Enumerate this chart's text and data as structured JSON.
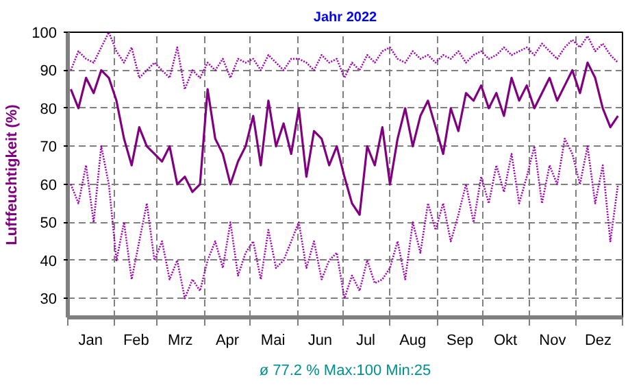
{
  "chart_data": {
    "type": "line",
    "title": "Jahr 2022",
    "ylabel": "Luftfeuchtigkeit (%)",
    "annotations": [
      "ø 77.2 % Max:100 Min:25"
    ],
    "x": [
      "2022-01-03",
      "2022-01-08",
      "2022-01-13",
      "2022-01-18",
      "2022-01-23",
      "2022-01-28",
      "2022-02-02",
      "2022-02-07",
      "2022-02-12",
      "2022-02-17",
      "2022-02-22",
      "2022-02-27",
      "2022-03-04",
      "2022-03-09",
      "2022-03-14",
      "2022-03-19",
      "2022-03-24",
      "2022-03-29",
      "2022-04-03",
      "2022-04-08",
      "2022-04-13",
      "2022-04-18",
      "2022-04-23",
      "2022-04-28",
      "2022-05-03",
      "2022-05-08",
      "2022-05-13",
      "2022-05-18",
      "2022-05-23",
      "2022-05-28",
      "2022-06-02",
      "2022-06-07",
      "2022-06-12",
      "2022-06-17",
      "2022-06-22",
      "2022-06-27",
      "2022-07-02",
      "2022-07-07",
      "2022-07-12",
      "2022-07-17",
      "2022-07-22",
      "2022-07-27",
      "2022-08-01",
      "2022-08-06",
      "2022-08-11",
      "2022-08-16",
      "2022-08-21",
      "2022-08-26",
      "2022-08-31",
      "2022-09-05",
      "2022-09-10",
      "2022-09-15",
      "2022-09-20",
      "2022-09-25",
      "2022-09-30",
      "2022-10-05",
      "2022-10-10",
      "2022-10-15",
      "2022-10-20",
      "2022-10-25",
      "2022-10-30",
      "2022-11-04",
      "2022-11-09",
      "2022-11-14",
      "2022-11-19",
      "2022-11-24",
      "2022-11-29",
      "2022-12-04",
      "2022-12-09",
      "2022-12-14",
      "2022-12-19",
      "2022-12-24",
      "2022-12-29"
    ],
    "series": [
      {
        "color": "#a000b0",
        "line_style": "dotted",
        "values": [
          90,
          95,
          93,
          92,
          96,
          100,
          95,
          92,
          96,
          88,
          90,
          92,
          90,
          88,
          96,
          85,
          90,
          88,
          92,
          90,
          93,
          88,
          93,
          92,
          93,
          90,
          94,
          92,
          90,
          93,
          93,
          92,
          90,
          94,
          92,
          93,
          88,
          92,
          90,
          94,
          92,
          95,
          96,
          93,
          92,
          95,
          93,
          94,
          92,
          94,
          93,
          95,
          92,
          94,
          95,
          93,
          94,
          96,
          94,
          95,
          96,
          94,
          97,
          95,
          93,
          96,
          98,
          96,
          99,
          95,
          97,
          94,
          92
        ]
      },
      {
        "color": "#a000b0",
        "line_style": "dotted",
        "values": [
          60,
          55,
          65,
          50,
          70,
          60,
          40,
          50,
          35,
          45,
          55,
          40,
          45,
          35,
          40,
          30,
          35,
          32,
          40,
          45,
          38,
          50,
          36,
          42,
          45,
          35,
          48,
          38,
          40,
          45,
          50,
          38,
          45,
          35,
          40,
          42,
          30,
          36,
          32,
          40,
          34,
          35,
          38,
          45,
          35,
          50,
          42,
          55,
          48,
          55,
          45,
          52,
          60,
          50,
          62,
          55,
          65,
          58,
          68,
          55,
          62,
          70,
          55,
          65,
          60,
          72,
          68,
          60,
          70,
          55,
          65,
          45,
          60
        ]
      },
      {
        "color": "#800080",
        "line_style": "solid",
        "values": [
          85,
          80,
          88,
          84,
          90,
          88,
          82,
          72,
          65,
          75,
          70,
          68,
          66,
          70,
          60,
          62,
          58,
          60,
          85,
          72,
          68,
          60,
          66,
          70,
          78,
          65,
          82,
          70,
          76,
          68,
          80,
          62,
          74,
          72,
          65,
          70,
          62,
          55,
          52,
          70,
          65,
          75,
          60,
          72,
          80,
          70,
          78,
          82,
          75,
          68,
          80,
          74,
          84,
          82,
          86,
          80,
          84,
          78,
          88,
          82,
          86,
          80,
          84,
          88,
          82,
          86,
          90,
          84,
          92,
          88,
          80,
          75,
          78
        ]
      }
    ],
    "xlim": [
      "2022-01-01",
      "2023-01-01"
    ],
    "xticks": [
      {
        "value": "2022-01-01",
        "label": null
      },
      {
        "value": "2022-01-16",
        "label": "Jan"
      },
      {
        "value": "2022-02-01",
        "label": null
      },
      {
        "value": "2022-02-15",
        "label": "Feb"
      },
      {
        "value": "2022-03-01",
        "label": null
      },
      {
        "value": "2022-03-16",
        "label": "Mrz"
      },
      {
        "value": "2022-04-01",
        "label": null
      },
      {
        "value": "2022-04-16",
        "label": "Apr"
      },
      {
        "value": "2022-05-01",
        "label": null
      },
      {
        "value": "2022-05-16",
        "label": "Mai"
      },
      {
        "value": "2022-06-01",
        "label": null
      },
      {
        "value": "2022-06-16",
        "label": "Jun"
      },
      {
        "value": "2022-07-01",
        "label": null
      },
      {
        "value": "2022-07-16",
        "label": "Jul"
      },
      {
        "value": "2022-08-01",
        "label": null
      },
      {
        "value": "2022-08-16",
        "label": "Aug"
      },
      {
        "value": "2022-09-01",
        "label": null
      },
      {
        "value": "2022-09-16",
        "label": "Sep"
      },
      {
        "value": "2022-10-01",
        "label": null
      },
      {
        "value": "2022-10-16",
        "label": "Okt"
      },
      {
        "value": "2022-11-01",
        "label": null
      },
      {
        "value": "2022-11-16",
        "label": "Nov"
      },
      {
        "value": "2022-12-01",
        "label": null
      },
      {
        "value": "2022-12-16",
        "label": "Dez"
      },
      {
        "value": "2023-01-01",
        "label": null
      }
    ],
    "ylim": [
      25,
      100
    ],
    "yticks": [
      30,
      40,
      50,
      60,
      70,
      80,
      90,
      100
    ],
    "grid": true,
    "marker": "none"
  }
}
